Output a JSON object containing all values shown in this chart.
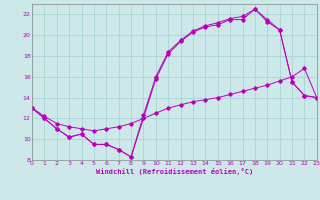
{
  "xlabel": "Windchill (Refroidissement éolien,°C)",
  "background_color": "#cce8e8",
  "grid_color": "#aad4d4",
  "line_color": "#bb00bb",
  "spine_color": "#888888",
  "x_min": 0,
  "x_max": 23,
  "y_min": 8,
  "y_max": 23,
  "yticks": [
    8,
    10,
    12,
    14,
    16,
    18,
    20,
    22
  ],
  "xticks": [
    0,
    1,
    2,
    3,
    4,
    5,
    6,
    7,
    8,
    9,
    10,
    11,
    12,
    13,
    14,
    15,
    16,
    17,
    18,
    19,
    20,
    21,
    22,
    23
  ],
  "line1_x": [
    0,
    1,
    2,
    3,
    4,
    5,
    6,
    7,
    8,
    9,
    10,
    11,
    12,
    13,
    14,
    15,
    16,
    17,
    18,
    19,
    20,
    21,
    22,
    23
  ],
  "line1_y": [
    13,
    12,
    11,
    10.2,
    10.5,
    9.5,
    9.5,
    9.0,
    8.3,
    12.0,
    15.8,
    18.2,
    19.4,
    20.3,
    20.8,
    21.0,
    21.5,
    21.5,
    22.5,
    21.3,
    20.5,
    15.5,
    14.2,
    14.0
  ],
  "line2_x": [
    0,
    1,
    2,
    3,
    4,
    5,
    6,
    7,
    8,
    9,
    10,
    11,
    12,
    13,
    14,
    15,
    16,
    17,
    18,
    19,
    20,
    21,
    22,
    23
  ],
  "line2_y": [
    13,
    12,
    11,
    10.2,
    10.5,
    9.5,
    9.5,
    9.0,
    8.3,
    12.3,
    16.0,
    18.4,
    19.5,
    20.4,
    20.9,
    21.2,
    21.6,
    21.8,
    22.5,
    21.5,
    20.5,
    15.5,
    14.2,
    14.0
  ],
  "line3_x": [
    0,
    1,
    2,
    3,
    4,
    5,
    6,
    7,
    8,
    9,
    10,
    11,
    12,
    13,
    14,
    15,
    16,
    17,
    18,
    19,
    20,
    21,
    22,
    23
  ],
  "line3_y": [
    13,
    12.2,
    11.5,
    11.2,
    11.0,
    10.8,
    11.0,
    11.2,
    11.5,
    12.0,
    12.5,
    13.0,
    13.3,
    13.6,
    13.8,
    14.0,
    14.3,
    14.6,
    14.9,
    15.2,
    15.6,
    16.0,
    16.8,
    14.0
  ]
}
